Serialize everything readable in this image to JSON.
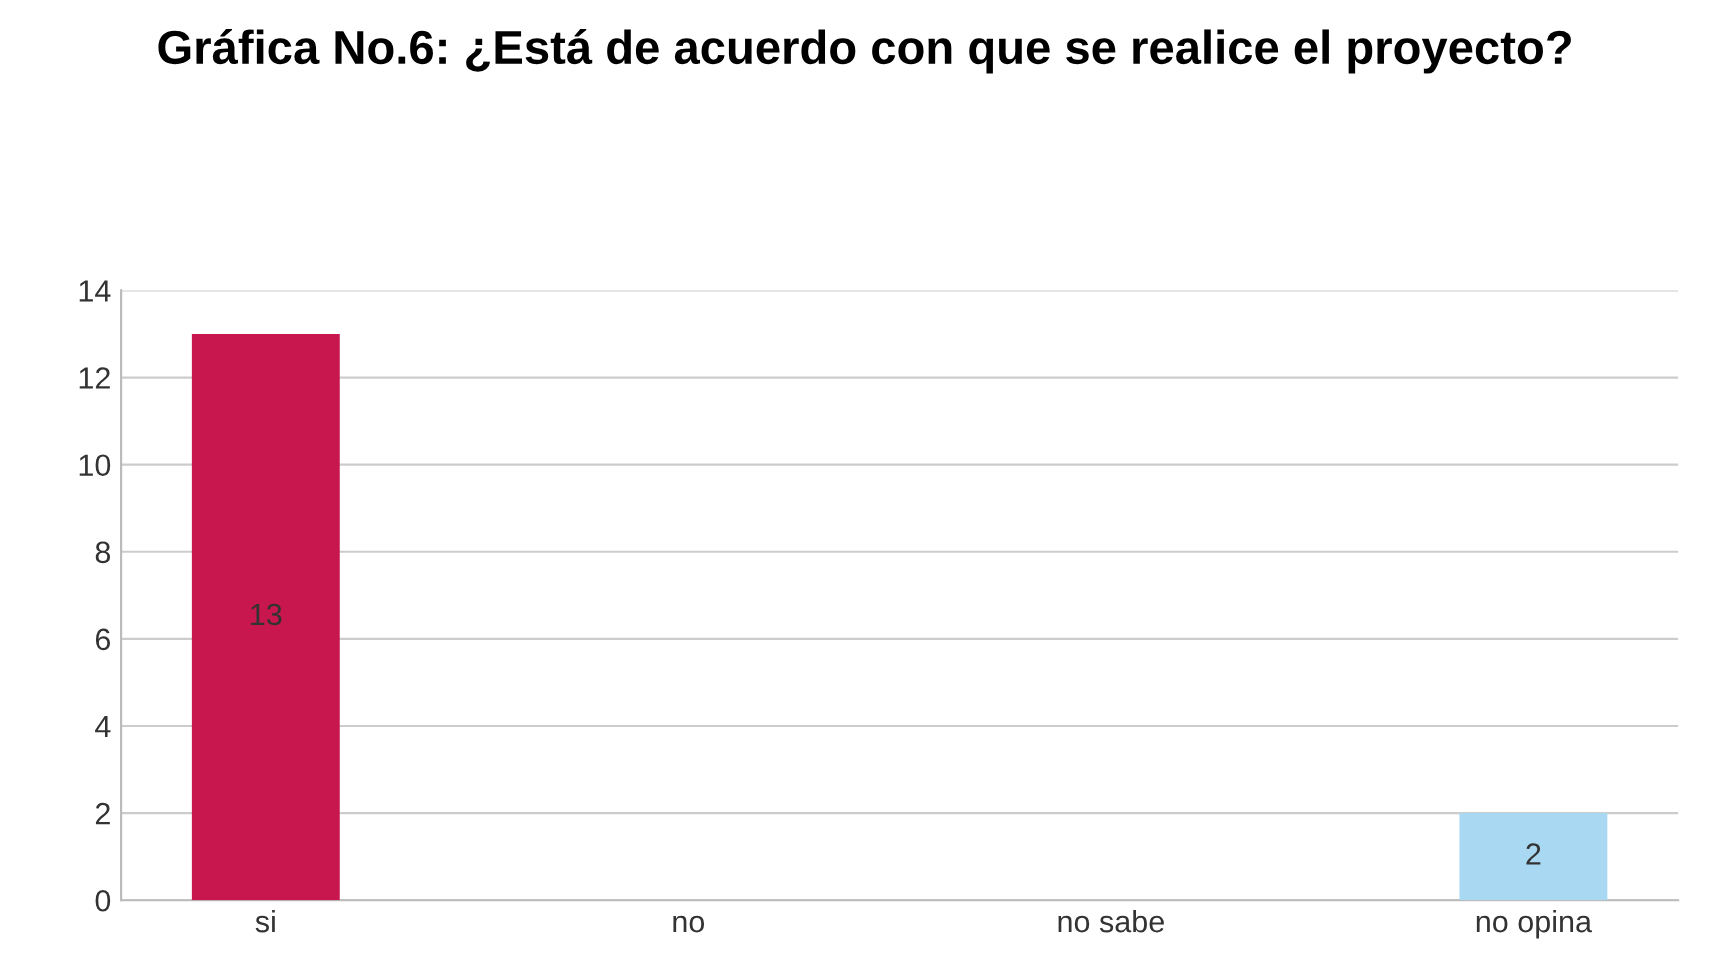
{
  "chart_data": {
    "type": "bar",
    "title": "Gráfica No.6: ¿Está de acuerdo con que se realice el proyecto?",
    "categories": [
      "si",
      "no",
      "no sabe",
      "no opina"
    ],
    "values": [
      13,
      0,
      0,
      2
    ],
    "colors": [
      "#c8174e",
      "#1c2233",
      "#1c2233",
      "#a9d9f2"
    ],
    "value_labels": [
      "13",
      null,
      null,
      "2"
    ],
    "ylim": [
      0,
      14
    ],
    "yticks": [
      0,
      2,
      4,
      6,
      8,
      10,
      12,
      14
    ],
    "grid": "y"
  }
}
